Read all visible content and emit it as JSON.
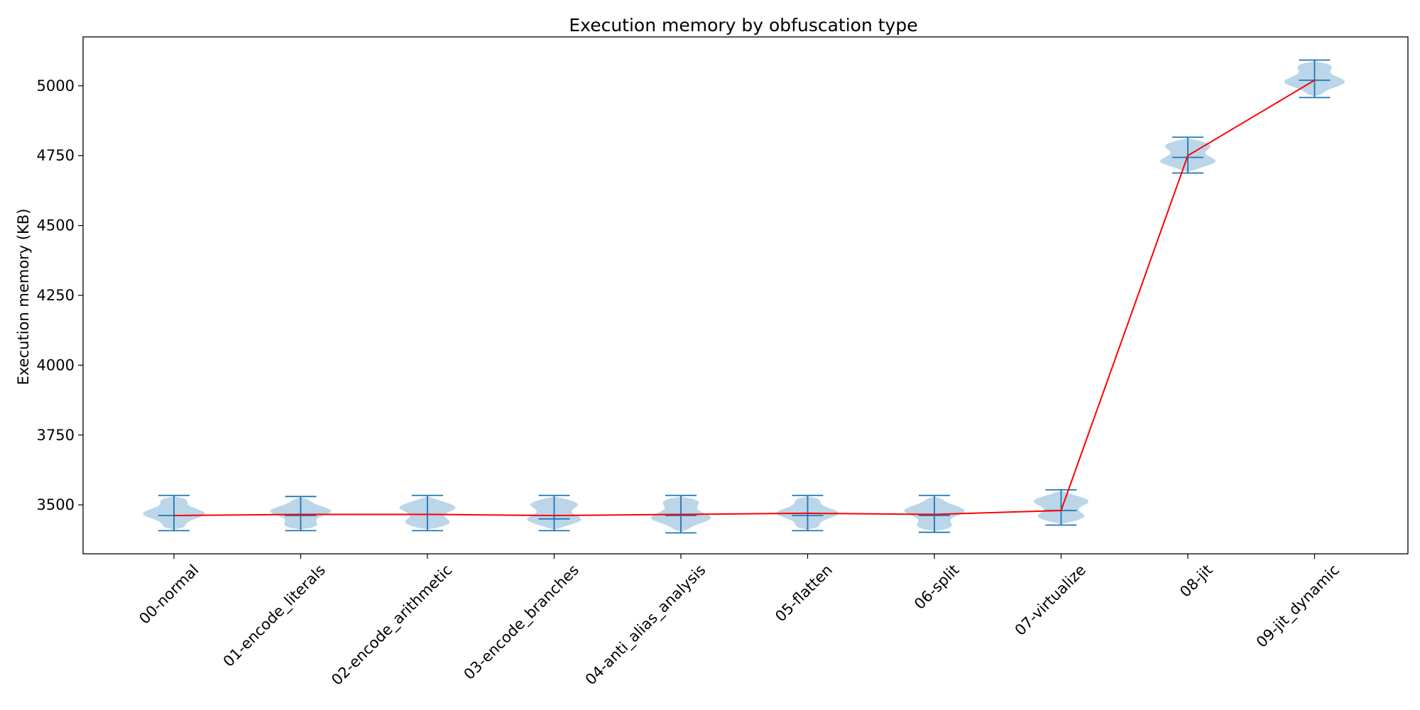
{
  "chart_data": {
    "type": "violin",
    "title": "Execution memory by obfuscation type",
    "xlabel": "",
    "ylabel": "Execution memory (KB)",
    "ylim": [
      3325,
      5175
    ],
    "yticks": [
      3500,
      3750,
      4000,
      4250,
      4500,
      4750,
      5000
    ],
    "grid": false,
    "categories": [
      "00-normal",
      "01-encode_literals",
      "02-encode_arithmetic",
      "03-encode_branches",
      "04-anti_alias_analysis",
      "05-flatten",
      "06-split",
      "07-virtualize",
      "08-jit",
      "09-jit_dynamic"
    ],
    "distributions": [
      {
        "min": 3408,
        "max": 3534,
        "median": 3462,
        "mean": 3462
      },
      {
        "min": 3408,
        "max": 3530,
        "median": 3462,
        "mean": 3466
      },
      {
        "min": 3408,
        "max": 3534,
        "median": 3466,
        "mean": 3466
      },
      {
        "min": 3408,
        "max": 3534,
        "median": 3450,
        "mean": 3462
      },
      {
        "min": 3400,
        "max": 3534,
        "median": 3462,
        "mean": 3466
      },
      {
        "min": 3408,
        "max": 3534,
        "median": 3462,
        "mean": 3470
      },
      {
        "min": 3402,
        "max": 3534,
        "median": 3462,
        "mean": 3466
      },
      {
        "min": 3428,
        "max": 3554,
        "median": 3480,
        "mean": 3480
      },
      {
        "min": 4688,
        "max": 4816,
        "median": 4744,
        "mean": 4750
      },
      {
        "min": 4958,
        "max": 5092,
        "median": 5020,
        "mean": 5020
      }
    ],
    "series": [
      {
        "name": "",
        "type": "line",
        "values": [
          3462,
          3466,
          3466,
          3462,
          3466,
          3470,
          3466,
          3480,
          4750,
          5020
        ]
      }
    ],
    "colors": {
      "violin_fill": "#1f77b4",
      "violin_line": "#1f77b4",
      "mean_line": "#ff0000"
    }
  }
}
